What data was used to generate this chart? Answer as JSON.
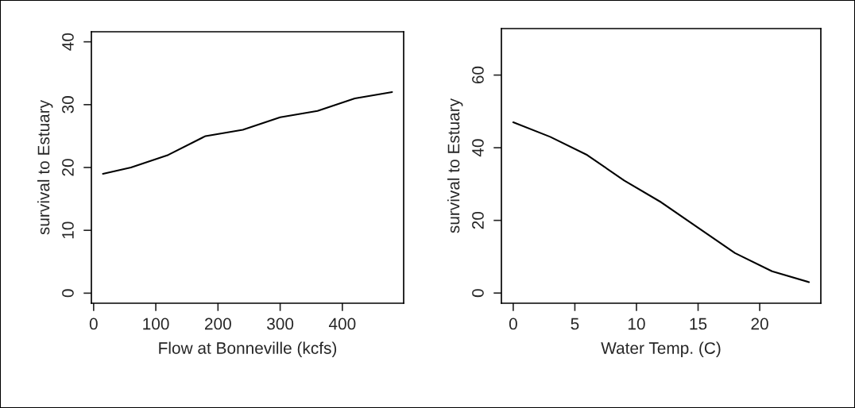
{
  "chart_data": [
    {
      "type": "line",
      "xlabel": "Flow at Bonneville (kcfs)",
      "ylabel": "survival to Estuary",
      "x": [
        15,
        60,
        120,
        180,
        240,
        300,
        360,
        420,
        480
      ],
      "series": [
        {
          "color": "#000000",
          "values": [
            19,
            20,
            22,
            25,
            26,
            28,
            29,
            31,
            32
          ]
        }
      ],
      "xlim": [
        -3.6,
        498.6
      ],
      "xticks": [
        0,
        100,
        200,
        300,
        400
      ],
      "ylim": [
        -1.6,
        41.6
      ],
      "yticks": [
        0,
        10,
        20,
        30,
        40
      ],
      "grid": false,
      "legend": false
    },
    {
      "type": "line",
      "xlabel": "Water Temp. (C)",
      "ylabel": "survival to Estuary",
      "x": [
        0,
        3,
        6,
        9,
        12,
        15,
        18,
        21,
        24
      ],
      "series": [
        {
          "color": "#000000",
          "values": [
            47,
            43,
            38,
            31,
            25,
            18,
            11,
            6,
            3
          ]
        }
      ],
      "xlim": [
        -0.96,
        24.96
      ],
      "xticks": [
        0,
        5,
        10,
        15,
        20
      ],
      "ylim": [
        -2.8,
        72.8
      ],
      "yticks": [
        0,
        20,
        40,
        60
      ],
      "grid": false,
      "legend": false
    }
  ]
}
